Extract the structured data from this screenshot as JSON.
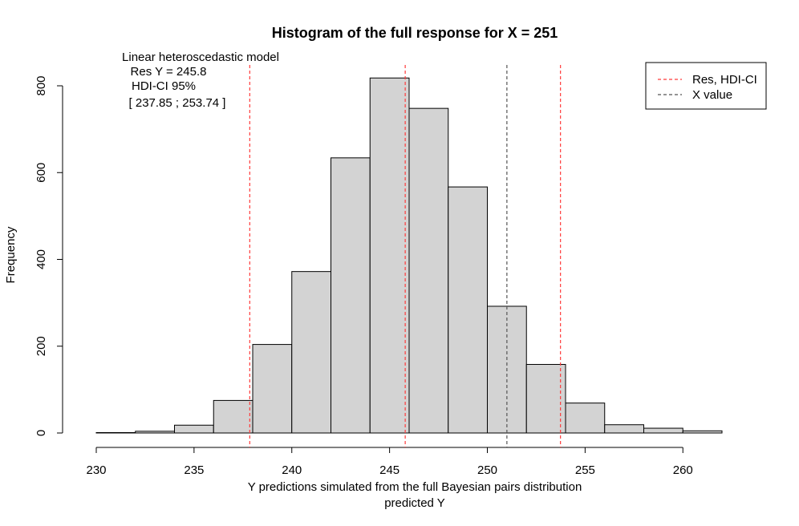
{
  "chart_data": {
    "type": "bar",
    "title": "Histogram of the full response for X = 251",
    "xlabel": "Y predictions simulated from the full Bayesian pairs distribution",
    "xlabel2": "predicted Y",
    "ylabel": "Frequency",
    "xlim": [
      230,
      262
    ],
    "ylim": [
      0,
      820
    ],
    "bin_edges": [
      230,
      232,
      234,
      236,
      238,
      240,
      242,
      244,
      246,
      248,
      250,
      252,
      254,
      256,
      258,
      260,
      262
    ],
    "values": [
      1,
      4,
      18,
      75,
      204,
      372,
      634,
      818,
      748,
      567,
      292,
      158,
      69,
      19,
      11,
      5
    ],
    "xticks": [
      230,
      235,
      240,
      245,
      250,
      255,
      260
    ],
    "yticks": [
      0,
      200,
      400,
      600,
      800
    ],
    "vlines": [
      {
        "x": 237.85,
        "color": "#ff3b3b",
        "series": "Res, HDI-CI"
      },
      {
        "x": 245.8,
        "color": "#ff3b3b",
        "series": "Res, HDI-CI"
      },
      {
        "x": 253.74,
        "color": "#ff3b3b",
        "series": "Res, HDI-CI"
      },
      {
        "x": 251,
        "color": "#555555",
        "series": "X value"
      }
    ],
    "legend": {
      "placement": "top-right",
      "items": [
        {
          "label": "Res, HDI-CI",
          "color": "#ff3b3b"
        },
        {
          "label": "X value",
          "color": "#555555"
        }
      ]
    },
    "annotation": [
      "Linear heteroscedastic model",
      "Res Y = 245.8",
      "HDI-CI 95%",
      "[ 237.85 ; 253.74 ]"
    ],
    "bar_fill": "#d3d3d3",
    "bar_stroke": "#000000"
  }
}
